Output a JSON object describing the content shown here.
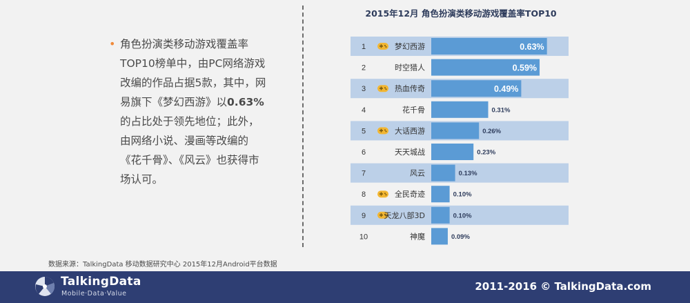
{
  "description": {
    "bullet": "•",
    "part1": "角色扮演类移动游戏覆盖率TOP10榜单中，由PC网络游戏改编的作品占据5款，其中，网易旗下《梦幻西游》以",
    "highlight": "0.63%",
    "part2": "的占比处于领先地位；此外，由网络小说、漫画等改编的《花千骨》、《风云》也获得市场认可。"
  },
  "source": "数据来源：TalkingData   移动数据研究中心   2015年12月Android平台数据",
  "footer": {
    "brand": "TalkingData",
    "tagline": "Mobile·Data·Value",
    "copyright": "2011-2016 © TalkingData.com"
  },
  "colors": {
    "bar": "#5b9bd5",
    "row_band": "#bcd0e8",
    "footer_bg": "#2e3e73",
    "pc_icon": "#f2b632"
  },
  "chart_data": {
    "type": "bar",
    "orientation": "horizontal",
    "title": "2015年12月 角色扮演类移动游戏覆盖率TOP10",
    "ranks": [
      "1",
      "2",
      "3",
      "4",
      "5",
      "6",
      "7",
      "8",
      "9",
      "10"
    ],
    "categories": [
      "梦幻西游",
      "时空猎人",
      "热血传奇",
      "花千骨",
      "大话西游",
      "天天城战",
      "风云",
      "全民奇迹",
      "天龙八部3D",
      "神魔"
    ],
    "values": [
      0.63,
      0.59,
      0.49,
      0.31,
      0.26,
      0.23,
      0.13,
      0.1,
      0.1,
      0.09
    ],
    "value_labels": [
      "0.63%",
      "0.59%",
      "0.49%",
      "0.31%",
      "0.26%",
      "0.23%",
      "0.13%",
      "0.10%",
      "0.10%",
      "0.09%"
    ],
    "pc_game_icon": [
      true,
      false,
      true,
      false,
      true,
      false,
      false,
      true,
      true,
      false
    ],
    "icon": "gamepad-icon",
    "xlim": [
      0,
      0.65
    ]
  }
}
